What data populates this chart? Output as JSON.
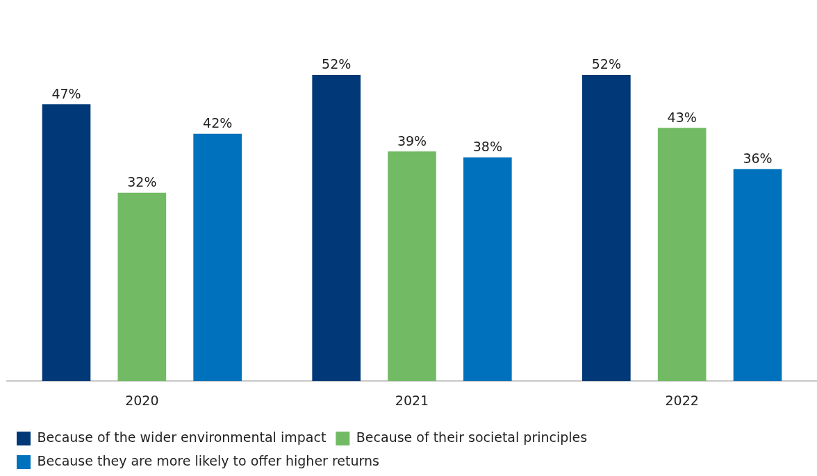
{
  "chart_data": {
    "type": "bar",
    "categories": [
      "2020",
      "2021",
      "2022"
    ],
    "series": [
      {
        "name": "Because of the wider environmental impact",
        "color": "#003878",
        "values": [
          47,
          52,
          52
        ],
        "value_labels": [
          "47%",
          "52%",
          "52%"
        ]
      },
      {
        "name": "Because of their societal principles",
        "color": "#72bb64",
        "values": [
          32,
          39,
          43
        ],
        "value_labels": [
          "32%",
          "39%",
          "43%"
        ]
      },
      {
        "name": "Because they are more likely to offer higher returns",
        "color": "#0071bc",
        "values": [
          42,
          38,
          36
        ],
        "value_labels": [
          "42%",
          "38%",
          "36%"
        ]
      }
    ],
    "grid": false,
    "legend": "bottom"
  }
}
